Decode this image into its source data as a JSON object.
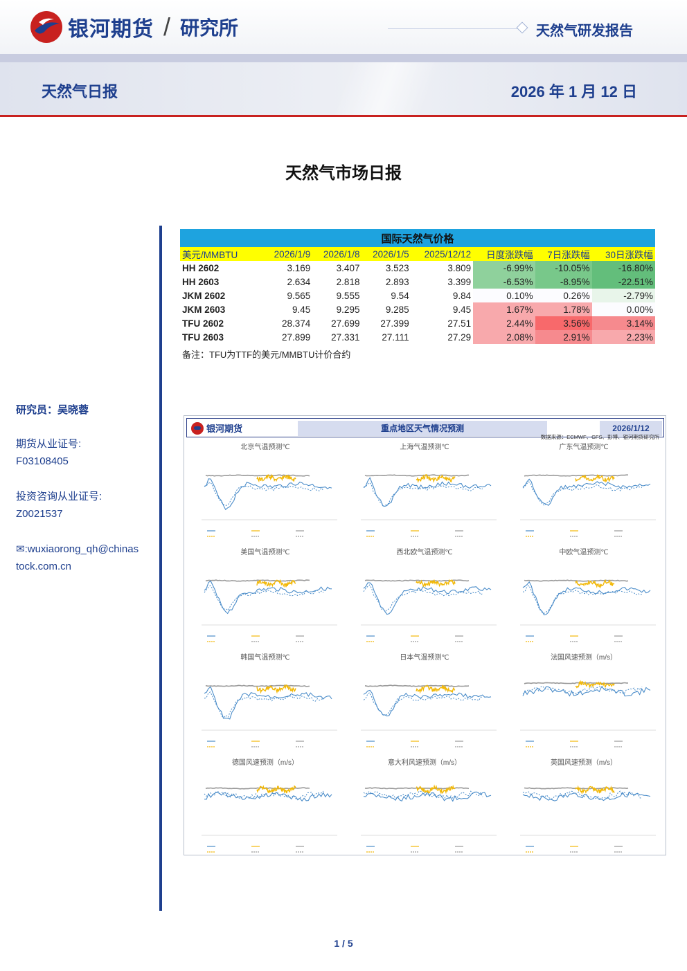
{
  "header": {
    "company": "银河期货",
    "slash": "/",
    "institute": "研究所",
    "report_type": "天然气研发报告"
  },
  "title_band": {
    "daily_title": "天然气日报",
    "date": "2026 年 1 月 12 日"
  },
  "document": {
    "title": "天然气市场日报"
  },
  "sidebar": {
    "researcher": "研究员：吴晓蓉",
    "license_label": "期货从业证号:",
    "license_value": "F03108405",
    "consult_label": "投资咨询从业证号:",
    "consult_value": "Z0021537",
    "email_line1": "✉:wuxiaorong_qh@chinas",
    "email_line2": "tock.com.cn"
  },
  "price_table": {
    "caption": "国际天然气价格",
    "headers": [
      "美元/MMBTU",
      "2026/1/9",
      "2026/1/8",
      "2026/1/5",
      "2025/12/12",
      "日度涨跌幅",
      "7日涨跌幅",
      "30日涨跌幅"
    ],
    "rows": [
      {
        "name": "HH 2602",
        "v1": "3.169",
        "v2": "3.407",
        "v3": "3.523",
        "v4": "3.809",
        "d": "-6.99%",
        "w": "-10.05%",
        "m": "-16.80%"
      },
      {
        "name": "HH 2603",
        "v1": "2.634",
        "v2": "2.818",
        "v3": "2.893",
        "v4": "3.399",
        "d": "-6.53%",
        "w": "-8.95%",
        "m": "-22.51%"
      },
      {
        "name": "JKM 2602",
        "v1": "9.565",
        "v2": "9.555",
        "v3": "9.54",
        "v4": "9.84",
        "d": "0.10%",
        "w": "0.26%",
        "m": "-2.79%"
      },
      {
        "name": "JKM 2603",
        "v1": "9.45",
        "v2": "9.295",
        "v3": "9.285",
        "v4": "9.45",
        "d": "1.67%",
        "w": "1.78%",
        "m": "0.00%"
      },
      {
        "name": "TFU 2602",
        "v1": "28.374",
        "v2": "27.699",
        "v3": "27.399",
        "v4": "27.51",
        "d": "2.44%",
        "w": "3.56%",
        "m": "3.14%"
      },
      {
        "name": "TFU 2603",
        "v1": "27.899",
        "v2": "27.331",
        "v3": "27.111",
        "v4": "27.29",
        "d": "2.08%",
        "w": "2.91%",
        "m": "2.23%"
      }
    ],
    "note": "备注：TFU为TTF的美元/MMBTU计价合约"
  },
  "weather_panel": {
    "logo": "银河期货",
    "title": "重点地区天气情况预测",
    "date": "2026/1/12",
    "source": "数据来源：ECMWF、GFS、彭博、银河期货研究所",
    "charts": [
      {
        "title": "北京气温预测℃"
      },
      {
        "title": "上海气温预测℃"
      },
      {
        "title": "广东气温预测℃"
      },
      {
        "title": "美国气温预测℃"
      },
      {
        "title": "西北欧气温预测℃"
      },
      {
        "title": "中欧气温预测℃"
      },
      {
        "title": "韩国气温预测℃"
      },
      {
        "title": "日本气温预测℃"
      },
      {
        "title": "法国风速预测（m/s）"
      },
      {
        "title": "德国风速预测（m/s）"
      },
      {
        "title": "意大利风速预测（m/s）"
      },
      {
        "title": "英国风速预测（m/s）"
      }
    ]
  },
  "colors": {
    "brand_blue": "#1e3f8e",
    "brand_red": "#c8211f",
    "caption_cyan": "#1ea3df",
    "header_yellow": "#ffff00",
    "ecmwf_line": "#4a8cc9",
    "gfs_line": "#f2b807",
    "avg_line": "#9a9a9a"
  },
  "footer": {
    "page": "1 / 5"
  }
}
